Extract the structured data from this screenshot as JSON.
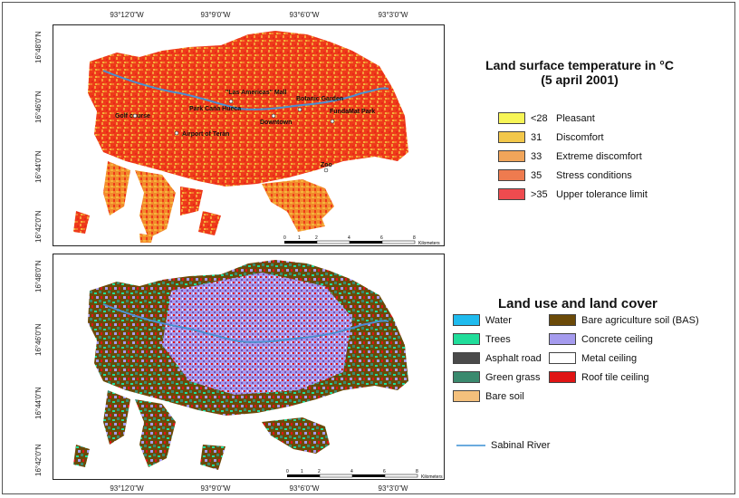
{
  "axes": {
    "longitudes": [
      "93°12'0\"W",
      "93°9'0\"W",
      "93°6'0\"W",
      "93°3'0\"W"
    ],
    "latitudes_top": [
      "16°48'0\"N",
      "16°46'0\"N",
      "16°44'0\"N",
      "16°42'0\"N"
    ],
    "latitudes_bottom": [
      "16°48'0\"N",
      "16°46'0\"N",
      "16°44'0\"N",
      "16°42'0\"N"
    ]
  },
  "top_map": {
    "places": [
      "Golf course",
      "Airport of Terán",
      "Park Caña Hueca",
      "\"Las Americas\" Mall",
      "Downtown",
      "Botanic Garden",
      "FundaMat Park",
      "Zoo"
    ],
    "scale": {
      "ticks": [
        "0",
        "1",
        "2",
        "4",
        "6",
        "8"
      ],
      "unit": "Kilometers"
    }
  },
  "bottom_map": {
    "scale": {
      "ticks": [
        "0",
        "1",
        "2",
        "4",
        "6",
        "8"
      ],
      "unit": "Kilometers"
    }
  },
  "temperature_legend": {
    "title_line1": "Land surface temperature in °C",
    "title_line2": "(5 april 2001)",
    "items": [
      {
        "value": "<28",
        "label": "Pleasant",
        "color": "#f7f556"
      },
      {
        "value": "31",
        "label": "Discomfort",
        "color": "#f2c74a"
      },
      {
        "value": "33",
        "label": "Extreme discomfort",
        "color": "#f1a55a"
      },
      {
        "value": "35",
        "label": "Stress conditions",
        "color": "#ee7b4f"
      },
      {
        "value": ">35",
        "label": "Upper tolerance limit",
        "color": "#ee4b4f"
      }
    ]
  },
  "landuse_legend": {
    "title": "Land use and land cover",
    "left_items": [
      {
        "label": "Water",
        "color": "#1fbbee"
      },
      {
        "label": "Trees",
        "color": "#20dd9a"
      },
      {
        "label": "Asphalt road",
        "color": "#4a4a4a"
      },
      {
        "label": "Green grass",
        "color": "#3a8a6e"
      },
      {
        "label": "Bare soil",
        "color": "#f4c07c"
      }
    ],
    "right_items": [
      {
        "label": "Bare agriculture soil (BAS)",
        "color": "#6b4a08"
      },
      {
        "label": "Concrete ceiling",
        "color": "#a59bee"
      },
      {
        "label": "Metal ceiling",
        "color": "#ffffff"
      },
      {
        "label": "Roof tile ceiling",
        "color": "#e01414"
      }
    ],
    "river": {
      "label": "Sabinal River",
      "color": "#3a8fd4"
    }
  }
}
